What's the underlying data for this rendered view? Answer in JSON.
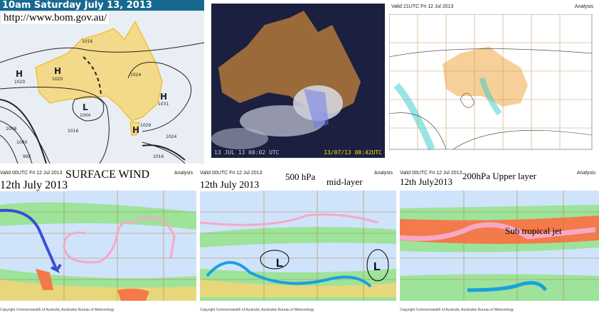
{
  "synoptic": {
    "title": "10am Saturday July 13, 2013",
    "url": "http://www.bom.gov.au/",
    "labels": {
      "h1": "H",
      "h1p": "1020",
      "h2": "H",
      "h2p": "1020",
      "l": "L",
      "lp": "1004",
      "h3": "H",
      "h3p": "1031",
      "h4": "H",
      "i1016a": "1016",
      "i1024a": "1024",
      "i1029": "1029",
      "i1024b": "1024",
      "i1016b": "1016",
      "i1016c": "1016",
      "i1008": "1008",
      "i1000": "1000",
      "i992": "992"
    }
  },
  "satellite": {
    "timestamp_left": "13 JUL 13 00:02 UTC",
    "timestamp_right": "13/07/13 00:42UTC",
    "timestamp_right_color": "#f0e000"
  },
  "mslp_chart": {
    "valid": "Valid 21UTC Fri 12 Jul 2013",
    "product": "Analysis"
  },
  "wind_panels": [
    {
      "valid": "Valid 00UTC Fri 12 Jul 2013",
      "product": "Analysis",
      "title": "SURFACE WIND",
      "date": "12th July 2013"
    },
    {
      "valid": "Valid 00UTC Fri 12 Jul 2013",
      "product": "Analysis",
      "title": "500 hPa",
      "subtitle": "mid-layer",
      "date": "12th July 2013",
      "low1": "L",
      "low2": "L"
    },
    {
      "valid": "Valid 00UTC Fri 12 Jul 2013",
      "product": "Analysis",
      "title": "200hPa Upper layer",
      "date": "12th July2013",
      "jet_label": "Sub tropical jet"
    }
  ],
  "footer": "Copyright Commonwealth of Australia, Australian Bureau of Meteorology",
  "colors": {
    "title_bar": "#17698f",
    "land": "#f3d98a",
    "ocean": "#e9eef5",
    "pink_annotation": "#f7a8c4",
    "blue_annotation": "#3a4fd0",
    "cyan_annotation": "#1aa0e0"
  }
}
